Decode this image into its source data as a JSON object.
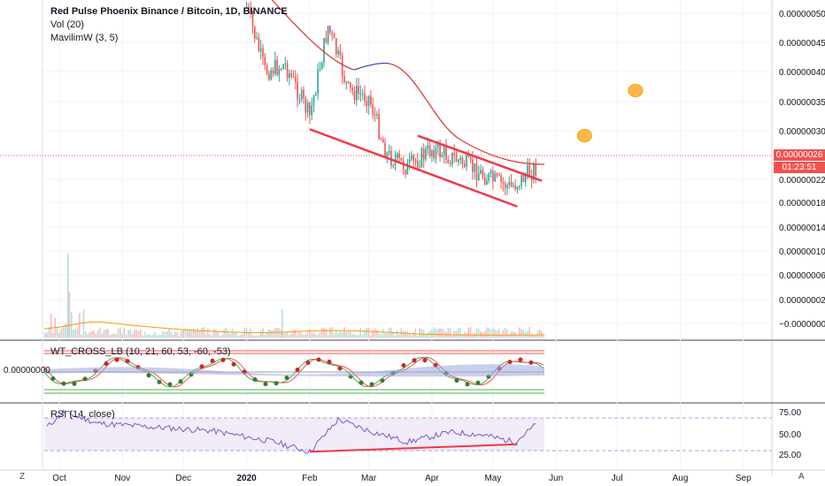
{
  "header": {
    "title": "Red Pulse Phoenix Binance / Bitcoin, 1D, BINANCE",
    "vol_label": "Vol (20)",
    "mavilim_label": "MavilimW (3, 5)"
  },
  "price_panel": {
    "last_price": "0.00000026",
    "countdown": "01:23:51",
    "y_ticks": [
      "0.00000050",
      "0.00000045",
      "0.00000040",
      "0.00000035",
      "0.00000030",
      "0.00000022",
      "0.00000018",
      "0.00000014",
      "0.00000010",
      "0.00000006",
      "0.00000002",
      "−0.00000002"
    ]
  },
  "wt_panel": {
    "label": "WT_CROSS_LB (10, 21, 60, 53, -60, -53)",
    "left_value": "0.00000000"
  },
  "rsi_panel": {
    "label": "RSI (14, close)",
    "y_ticks": [
      "75.00",
      "50.00",
      "25.00"
    ]
  },
  "x_axis": {
    "labels": [
      "Oct",
      "Nov",
      "Dec",
      "2020",
      "Feb",
      "Mar",
      "Apr",
      "May",
      "Jun",
      "Jul",
      "Aug",
      "Sep"
    ]
  },
  "controls": {
    "left_button": "Z",
    "right_button": "A"
  },
  "colors": {
    "up": "#26a69a",
    "down": "#ef5350",
    "trendline": "#f23645",
    "ma": "#e53935",
    "ma_blue": "#3f51b5",
    "rsi": "#7e57c2",
    "marker": "#ffb74d"
  },
  "chart_data": [
    {
      "type": "candlestick",
      "title": "Red Pulse Phoenix Binance / Bitcoin, 1D, BINANCE",
      "ylim": [
        -4e-08,
        5.2e-07
      ],
      "x_range": [
        "Sep 20",
        "Sep 25"
      ],
      "approx_closes": [
        {
          "x": "Jan 1",
          "y": 5.1e-07
        },
        {
          "x": "Jan 10",
          "y": 4.1e-07
        },
        {
          "x": "Jan 20",
          "y": 4.2e-07
        },
        {
          "x": "Feb 1",
          "y": 3.4e-07
        },
        {
          "x": "Feb 10",
          "y": 4.8e-07
        },
        {
          "x": "Feb 20",
          "y": 3.8e-07
        },
        {
          "x": "Mar 1",
          "y": 3.7e-07
        },
        {
          "x": "Mar 10",
          "y": 2.8e-07
        },
        {
          "x": "Mar 20",
          "y": 2.6e-07
        },
        {
          "x": "Apr 1",
          "y": 2.9e-07
        },
        {
          "x": "Apr 15",
          "y": 2.7e-07
        },
        {
          "x": "May 1",
          "y": 2.4e-07
        },
        {
          "x": "May 10",
          "y": 2.3e-07
        },
        {
          "x": "May 22",
          "y": 2.6e-07
        }
      ],
      "trendlines": [
        {
          "name": "lower",
          "from": {
            "x": "Feb 1",
            "y": 3.2e-07
          },
          "to": {
            "x": "May 13",
            "y": 2e-07
          }
        },
        {
          "name": "upper",
          "from": {
            "x": "Mar 25",
            "y": 3.1e-07
          },
          "to": {
            "x": "May 25",
            "y": 2.4e-07
          }
        }
      ],
      "markers": [
        {
          "x": "Jun 15",
          "y": 3.1e-07
        },
        {
          "x": "Jul 10",
          "y": 3.8e-07
        }
      ]
    },
    {
      "type": "bar",
      "ylabel": "Vol (20)"
    },
    {
      "type": "line",
      "ylim": [
        0,
        90
      ],
      "bands": [
        30,
        70
      ],
      "approx_rsi": [
        {
          "x": "Sep 25",
          "y": 55
        },
        {
          "x": "Oct 3",
          "y": 75
        },
        {
          "x": "Oct 20",
          "y": 60
        },
        {
          "x": "Nov 15",
          "y": 55
        },
        {
          "x": "Dec 15",
          "y": 50
        },
        {
          "x": "Jan 15",
          "y": 35
        },
        {
          "x": "Feb 1",
          "y": 22
        },
        {
          "x": "Feb 15",
          "y": 65
        },
        {
          "x": "Mar 1",
          "y": 50
        },
        {
          "x": "Mar 20",
          "y": 35
        },
        {
          "x": "Apr 10",
          "y": 48
        },
        {
          "x": "Apr 25",
          "y": 45
        },
        {
          "x": "May 12",
          "y": 35
        },
        {
          "x": "May 22",
          "y": 58
        }
      ],
      "trendline": {
        "from": {
          "x": "Feb 1",
          "y": 22
        },
        "to": {
          "x": "May 13",
          "y": 32
        }
      }
    }
  ]
}
